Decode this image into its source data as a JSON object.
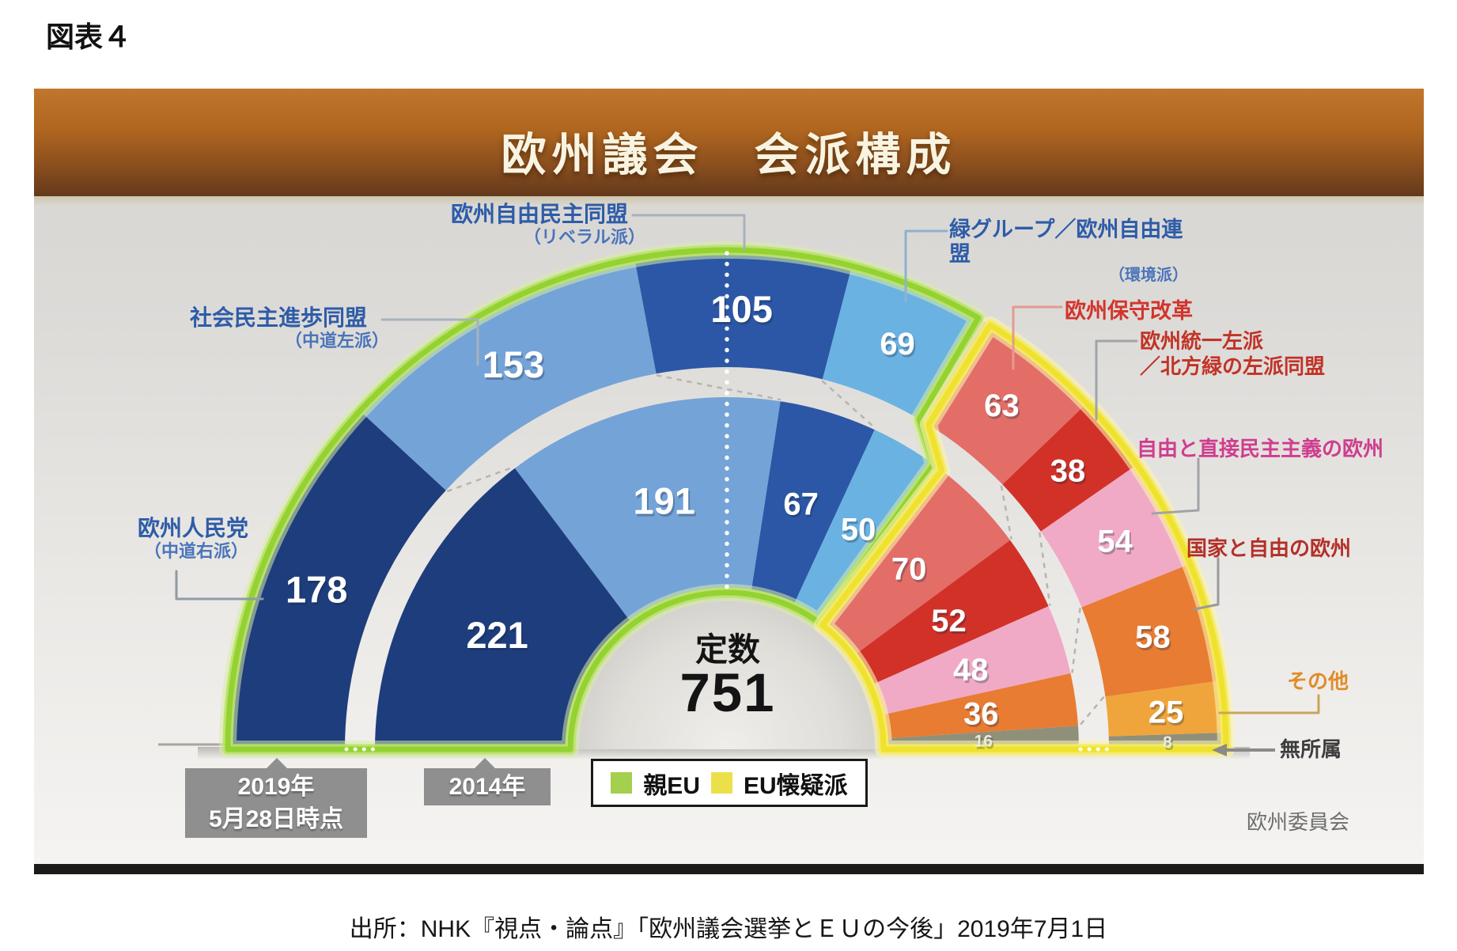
{
  "figure_label": "図表４",
  "header": {
    "title": "欧州議会　会派構成"
  },
  "chart_data": {
    "type": "half-donut parliament (2 rings)",
    "title": "欧州議会 会派構成",
    "total": 751,
    "center_label": "定数",
    "pro_eu_groups": 4,
    "legend_position": "bottom-center",
    "rings": [
      {
        "name": "2019",
        "position": "outer",
        "time_label": "2019年5月28日時点",
        "segments": [
          {
            "group": "欧州人民党",
            "value": 178,
            "color": "#1e3d7d",
            "bloc": "pro"
          },
          {
            "group": "社会民主進歩同盟",
            "value": 153,
            "color": "#74a3d8",
            "bloc": "pro"
          },
          {
            "group": "欧州自由民主同盟",
            "value": 105,
            "color": "#2c57a6",
            "bloc": "pro"
          },
          {
            "group": "緑グループ／欧州自由連盟",
            "value": 69,
            "color": "#6ab2e2",
            "bloc": "pro"
          },
          {
            "group": "欧州保守改革",
            "value": 63,
            "color": "#e26e67",
            "bloc": "sceptic"
          },
          {
            "group": "欧州統一左派／北方緑の左派同盟",
            "value": 38,
            "color": "#d23128",
            "bloc": "sceptic"
          },
          {
            "group": "自由と直接民主主義の欧州",
            "value": 54,
            "color": "#f0aac6",
            "bloc": "sceptic"
          },
          {
            "group": "国家と自由の欧州",
            "value": 58,
            "color": "#e87c33",
            "bloc": "sceptic"
          },
          {
            "group": "その他",
            "value": 25,
            "color": "#f0a53c",
            "bloc": "sceptic"
          },
          {
            "group": "無所属",
            "value": 8,
            "color": "#90907a",
            "bloc": "none",
            "small": true
          }
        ]
      },
      {
        "name": "2014",
        "position": "inner",
        "time_label": "2014年",
        "segments": [
          {
            "group": "欧州人民党",
            "value": 221,
            "color": "#1e3d7d",
            "bloc": "pro"
          },
          {
            "group": "社会民主進歩同盟",
            "value": 191,
            "color": "#74a3d8",
            "bloc": "pro"
          },
          {
            "group": "欧州自由民主同盟",
            "value": 67,
            "color": "#2c57a6",
            "bloc": "pro"
          },
          {
            "group": "緑グループ／欧州自由連盟",
            "value": 50,
            "color": "#6ab2e2",
            "bloc": "pro"
          },
          {
            "group": "欧州保守改革",
            "value": 70,
            "color": "#e26e67",
            "bloc": "sceptic"
          },
          {
            "group": "欧州統一左派／北方緑の左派同盟",
            "value": 52,
            "color": "#d23128",
            "bloc": "sceptic"
          },
          {
            "group": "自由と直接民主主義の欧州",
            "value": 48,
            "color": "#f0aac6",
            "bloc": "sceptic"
          },
          {
            "group": "国家と自由の欧州",
            "value": 36,
            "color": "#e87c33",
            "bloc": "sceptic"
          },
          {
            "group": "無所属",
            "value": 16,
            "color": "#90907a",
            "bloc": "none",
            "small": true
          }
        ]
      }
    ]
  },
  "callouts": {
    "epp": {
      "name": "欧州人民党",
      "paren": "（中道右派）"
    },
    "sd": {
      "name": "社会民主進歩同盟",
      "paren": "（中道左派）"
    },
    "alde": {
      "name": "欧州自由民主同盟",
      "paren": "（リベラル派）"
    },
    "greens": {
      "name": "緑グループ／欧州自由連盟",
      "paren": "（環境派）"
    },
    "ecr": {
      "name": "欧州保守改革"
    },
    "guengl": {
      "name": "欧州統一左派",
      "name2": "／北方緑の左派同盟"
    },
    "efdd": {
      "name": "自由と直接民主主義の欧州"
    },
    "enf": {
      "name": "国家と自由の欧州"
    },
    "others": {
      "name": "その他"
    },
    "ni": {
      "name": "無所属"
    }
  },
  "year_boxes": {
    "outer": {
      "line1": "2019年",
      "line2": "5月28日時点"
    },
    "inner": {
      "line1": "2014年"
    }
  },
  "legend": {
    "pro_eu": {
      "label": "親EU",
      "color": "#a5cf4e"
    },
    "sceptic": {
      "label": "EU懐疑派",
      "color": "#ece04a"
    }
  },
  "border_colors": {
    "pro_eu": "#94d232",
    "sceptic": "#eee22e"
  },
  "source_note": "欧州委員会",
  "caption": "出所：NHK『視点・論点』「欧州議会選挙とＥＵの今後」2019年7月1日"
}
